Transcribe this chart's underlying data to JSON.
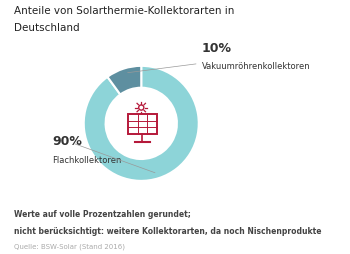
{
  "title_line1": "Anteile von Solarthermie-Kollektorarten in",
  "title_line2": "Deutschland",
  "title_underline_color": "#7ecfd4",
  "slices": [
    90,
    10
  ],
  "slice_colors": [
    "#8dd4d8",
    "#5e8fa0"
  ],
  "slice_labels": [
    "Flachkollektoren",
    "Vakuumröhrenkollektoren"
  ],
  "slice_pct": [
    "90%",
    "10%"
  ],
  "footnote1": "Werte auf volle Prozentzahlen gerundet;",
  "footnote2": "nicht berücksichtigt: weitere Kollektorarten, da noch Nischenprodukte",
  "source": "Quelle: BSW-Solar (Stand 2016)",
  "background_color": "#ffffff",
  "icon_color": "#b5193a",
  "title_fontsize": 7.5,
  "label_pct_fontsize": 9,
  "label_name_fontsize": 6,
  "footnote_fontsize": 5.5,
  "source_fontsize": 5,
  "text_color": "#333333",
  "source_color": "#aaaaaa",
  "line_color": "#999999"
}
